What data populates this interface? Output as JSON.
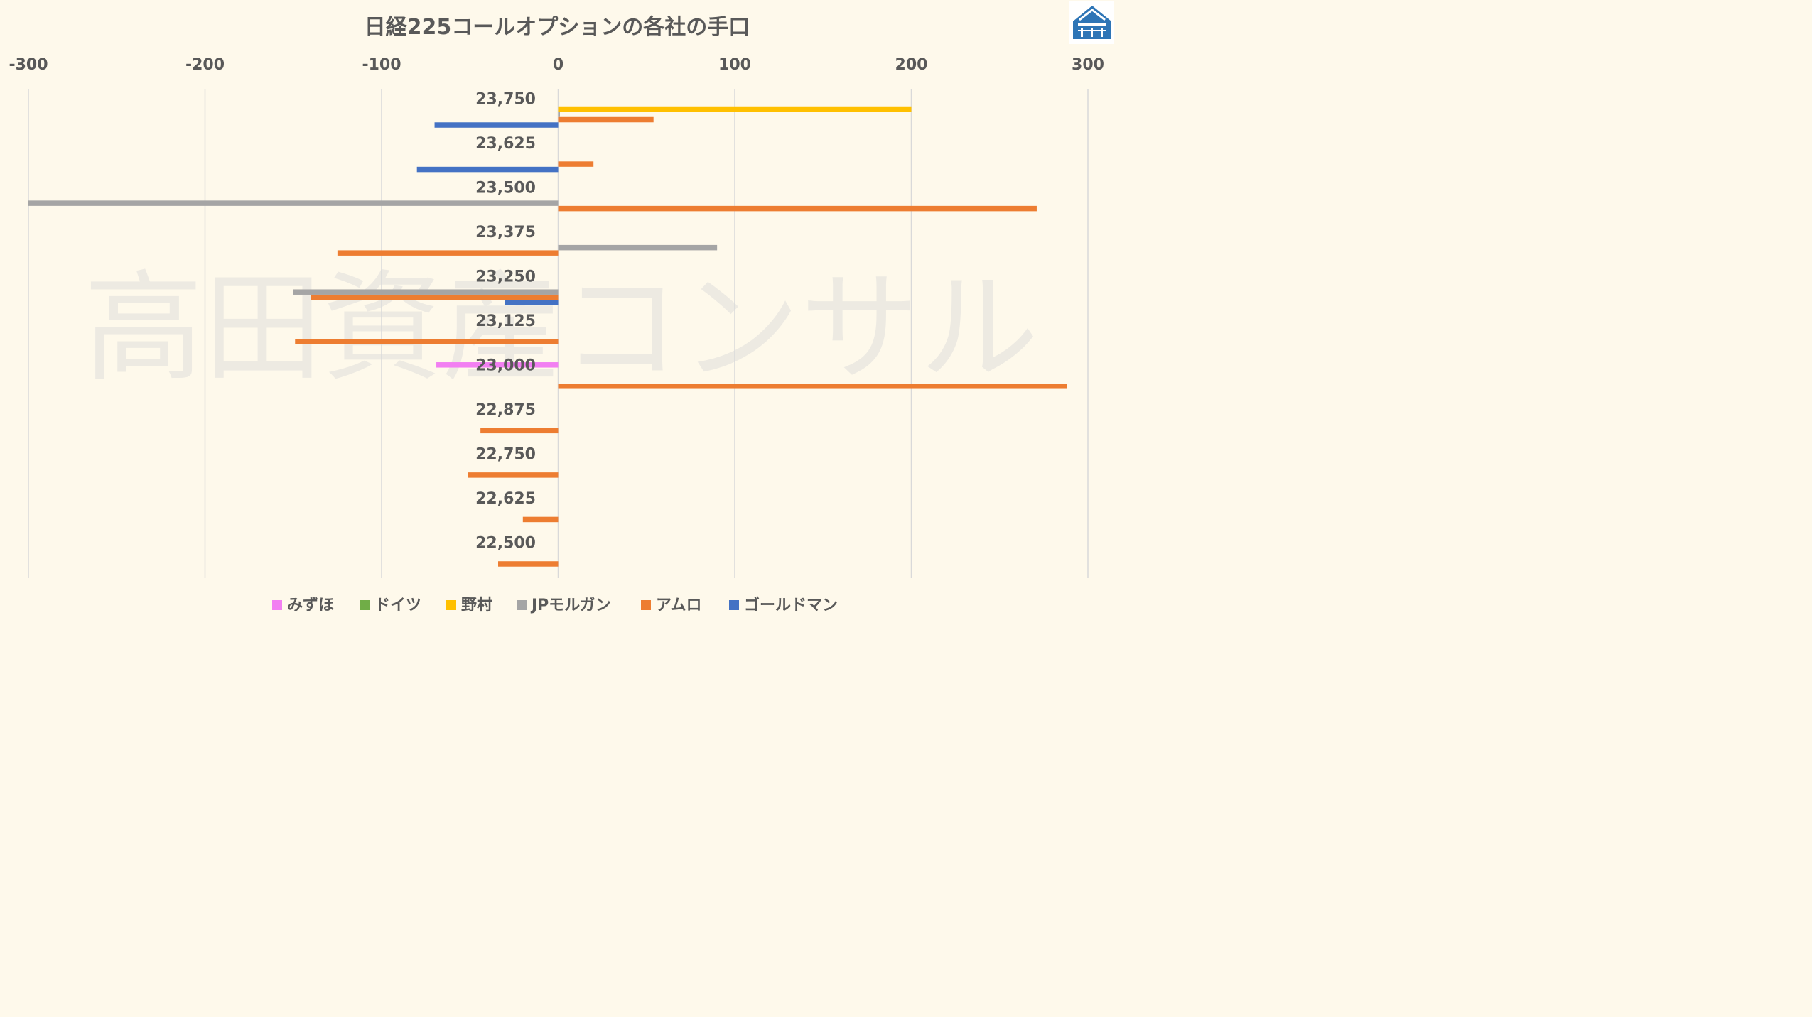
{
  "watermark": "高田資産コンサル",
  "colors": {
    "background": "#FEF9EB",
    "gridline": "#D9D9D9",
    "text": "#595959",
    "logo": "#2E75B6"
  },
  "logo": {
    "icon": "building-logo-icon"
  },
  "chart_data": {
    "type": "bar",
    "orientation": "horizontal",
    "title": "日経225コールオプションの各社の手口",
    "xlabel": "",
    "ylabel": "",
    "xlim": [
      -300,
      300
    ],
    "xticks": [
      -300,
      -200,
      -100,
      0,
      100,
      200,
      300
    ],
    "xaxis_position": "top",
    "grid": true,
    "legend_position": "bottom",
    "categories": [
      "23,750",
      "23,625",
      "23,500",
      "23,375",
      "23,250",
      "23,125",
      "23,000",
      "22,875",
      "22,750",
      "22,625",
      "22,500"
    ],
    "series": [
      {
        "name": "みずほ",
        "color": "#F27FF2",
        "values": [
          0,
          0,
          0,
          0,
          0,
          0,
          -69,
          0,
          0,
          0,
          0
        ]
      },
      {
        "name": "ドイツ",
        "color": "#70AD47",
        "values": [
          0,
          0,
          0,
          0,
          0,
          0,
          0,
          0,
          0,
          0,
          0
        ]
      },
      {
        "name": "野村",
        "color": "#FFC000",
        "values": [
          200,
          0,
          0,
          0,
          0,
          0,
          0,
          0,
          0,
          0,
          0
        ]
      },
      {
        "name": "JPモルガン",
        "color": "#A5A5A5",
        "values": [
          1,
          0,
          -300,
          90,
          -150,
          0,
          0,
          0,
          0,
          0,
          0
        ]
      },
      {
        "name": "アムロ",
        "color": "#ED7D31",
        "values": [
          54,
          20,
          271,
          -125,
          -140,
          -149,
          288,
          -44,
          -51,
          -20,
          -34
        ]
      },
      {
        "name": "ゴールドマン",
        "color": "#4472C4",
        "values": [
          -70,
          -80,
          0,
          0,
          -30,
          0,
          0,
          0,
          0,
          0,
          0
        ]
      }
    ]
  }
}
